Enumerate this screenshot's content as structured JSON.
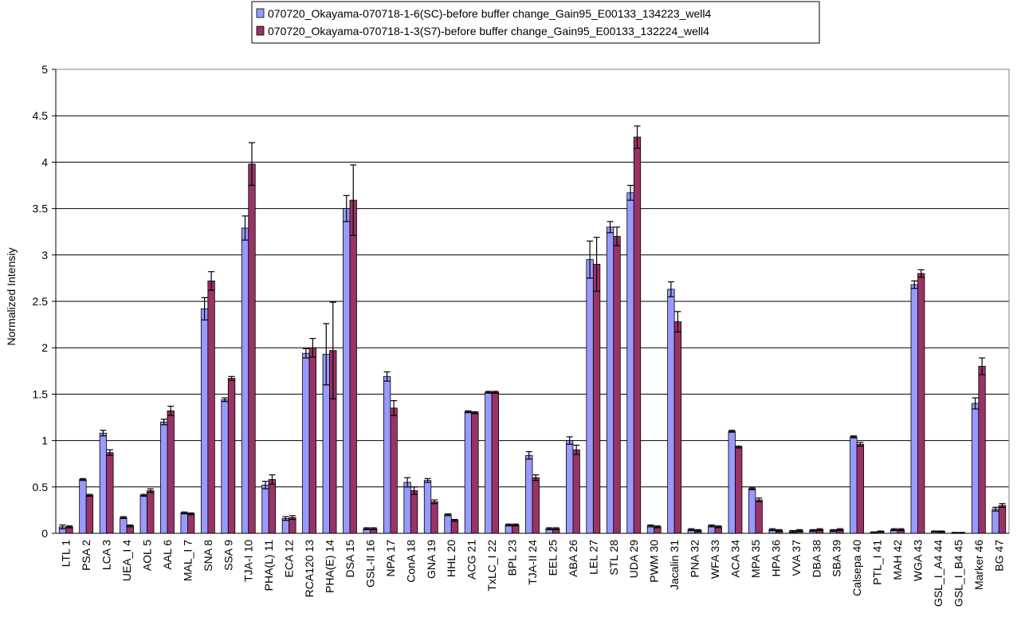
{
  "chart_data": {
    "type": "bar",
    "ylabel": "Normalized Intensiy",
    "xlabel": "",
    "ylim": [
      0,
      5
    ],
    "yticks": [
      "0",
      "0.5",
      "1",
      "1.5",
      "2",
      "2.5",
      "3",
      "3.5",
      "4",
      "4.5",
      "5"
    ],
    "grid": "horizontal",
    "legend_position": "top",
    "categories": [
      "LTL 1",
      "PSA 2",
      "LCA 3",
      "UEA_I 4",
      "AOL 5",
      "AAL 6",
      "MAL_I 7",
      "SNA 8",
      "SSA 9",
      "TJA-I 10",
      "PHA(L) 11",
      "ECA 12",
      "RCA120 13",
      "PHA(E) 14",
      "DSA 15",
      "GSL-II 16",
      "NPA 17",
      "ConA 18",
      "GNA 19",
      "HHL 20",
      "ACG 21",
      "TxLC_I 22",
      "BPL 23",
      "TJA-II 24",
      "EEL 25",
      "ABA 26",
      "LEL 27",
      "STL 28",
      "UDA 29",
      "PWM 30",
      "Jacalin 31",
      "PNA 32",
      "WFA 33",
      "ACA 34",
      "MPA 35",
      "HPA 36",
      "VVA 37",
      "DBA 38",
      "SBA 39",
      "Calsepa 40",
      "PTL_I 41",
      "MAH 42",
      "WGA 43",
      "GSL_I_A4 44",
      "GSL_I_B4 45",
      "Marker 46",
      "BG 47"
    ],
    "series": [
      {
        "name": "070720_Okayama-070718-1-6(SC)-before buffer change_Gain95_E00133_134223_well4",
        "color": "#9999ff",
        "values": [
          0.07,
          0.58,
          1.08,
          0.17,
          0.41,
          1.2,
          0.22,
          2.42,
          1.44,
          3.29,
          0.52,
          0.16,
          1.94,
          1.93,
          3.5,
          0.05,
          1.69,
          0.55,
          0.57,
          0.2,
          1.31,
          1.52,
          0.09,
          0.84,
          0.05,
          1.0,
          2.95,
          3.3,
          3.67,
          0.08,
          2.63,
          0.04,
          0.08,
          1.1,
          0.48,
          0.04,
          0.02,
          0.03,
          0.03,
          1.04,
          0.01,
          0.04,
          2.68,
          0.02,
          0.005,
          1.4,
          0.26
        ],
        "errors": [
          0.02,
          0.01,
          0.03,
          0.01,
          0.01,
          0.03,
          0.01,
          0.12,
          0.02,
          0.13,
          0.04,
          0.02,
          0.05,
          0.33,
          0.14,
          0.01,
          0.05,
          0.05,
          0.02,
          0.01,
          0.01,
          0.01,
          0.01,
          0.04,
          0.01,
          0.04,
          0.2,
          0.06,
          0.08,
          0.01,
          0.08,
          0.01,
          0.01,
          0.01,
          0.01,
          0.01,
          0.01,
          0.01,
          0.01,
          0.01,
          0.005,
          0.01,
          0.04,
          0.005,
          0.005,
          0.06,
          0.02
        ]
      },
      {
        "name": "070720_Okayama-070718-1-3(S7)-before buffer change_Gain95_E00133_132224_well4",
        "color": "#993366",
        "values": [
          0.07,
          0.41,
          0.87,
          0.08,
          0.46,
          1.32,
          0.21,
          2.72,
          1.67,
          3.98,
          0.58,
          0.17,
          2.0,
          1.97,
          3.59,
          0.05,
          1.35,
          0.46,
          0.34,
          0.14,
          1.3,
          1.52,
          0.09,
          0.6,
          0.05,
          0.9,
          2.9,
          3.2,
          4.27,
          0.07,
          2.28,
          0.03,
          0.07,
          0.93,
          0.36,
          0.03,
          0.03,
          0.04,
          0.04,
          0.96,
          0.02,
          0.04,
          2.8,
          0.02,
          0.005,
          1.8,
          0.3
        ],
        "errors": [
          0.01,
          0.01,
          0.03,
          0.01,
          0.02,
          0.05,
          0.01,
          0.1,
          0.02,
          0.23,
          0.05,
          0.02,
          0.1,
          0.52,
          0.38,
          0.01,
          0.08,
          0.04,
          0.02,
          0.01,
          0.01,
          0.01,
          0.01,
          0.03,
          0.01,
          0.05,
          0.29,
          0.1,
          0.12,
          0.01,
          0.11,
          0.01,
          0.01,
          0.01,
          0.02,
          0.01,
          0.01,
          0.01,
          0.01,
          0.02,
          0.005,
          0.01,
          0.04,
          0.005,
          0.005,
          0.09,
          0.02
        ]
      }
    ]
  }
}
